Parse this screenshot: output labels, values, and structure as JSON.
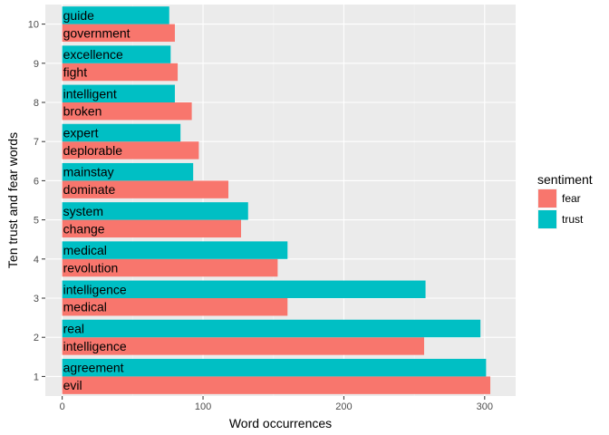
{
  "chart_data": {
    "type": "bar",
    "orientation": "horizontal",
    "grouped": true,
    "xlabel": "Word occurrences",
    "ylabel": "Ten trust and fear words",
    "xlim": [
      -12,
      322
    ],
    "x_ticks": [
      "0",
      "100",
      "200",
      "300"
    ],
    "x_tick_values": [
      0,
      100,
      200,
      300
    ],
    "categories": [
      "1",
      "2",
      "3",
      "4",
      "5",
      "6",
      "7",
      "8",
      "9",
      "10"
    ],
    "series": [
      {
        "name": "fear",
        "color": "#F8766D",
        "values": [
          304,
          257,
          160,
          153,
          127,
          118,
          97,
          92,
          82,
          80
        ],
        "labels": [
          "evil",
          "intelligence",
          "medical",
          "revolution",
          "change",
          "dominate",
          "deplorable",
          "broken",
          "fight",
          "government"
        ]
      },
      {
        "name": "trust",
        "color": "#00BFC4",
        "values": [
          301,
          297,
          258,
          160,
          132,
          93,
          84,
          80,
          77,
          76
        ],
        "labels": [
          "agreement",
          "real",
          "intelligence",
          "medical",
          "system",
          "mainstay",
          "expert",
          "intelligent",
          "excellence",
          "guide"
        ]
      }
    ],
    "legend": {
      "title": "sentiment",
      "position": "right"
    },
    "grid": true,
    "panel_color": "#EBEBEB"
  }
}
